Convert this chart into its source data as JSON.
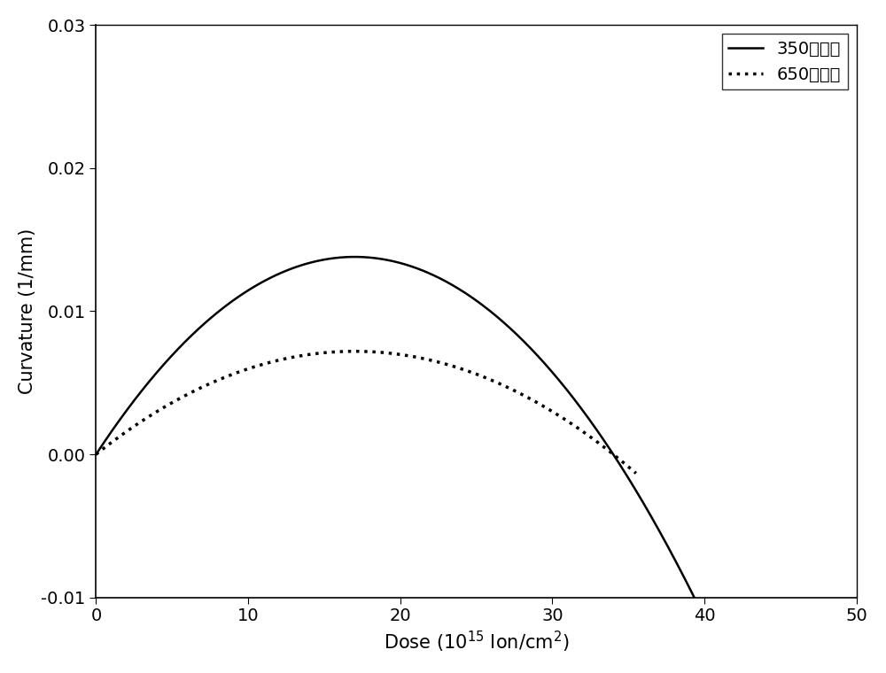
{
  "title": "",
  "xlim": [
    0,
    50
  ],
  "ylim": [
    -0.01,
    0.03
  ],
  "xticks": [
    0,
    10,
    20,
    30,
    40,
    50
  ],
  "yticks": [
    -0.01,
    0.0,
    0.01,
    0.02,
    0.03
  ],
  "curve1": {
    "label": "350摄氏度",
    "linestyle": "solid",
    "color": "#000000",
    "peak_x": 17.0,
    "peak_y": 0.0138,
    "x_end": 43.5
  },
  "curve2": {
    "label": "650摄氏度",
    "linestyle": "dotted",
    "color": "#000000",
    "peak_x": 17.0,
    "peak_y": 0.0072,
    "x_end": 35.5
  },
  "background_color": "#ffffff",
  "linewidth": 1.8,
  "fontsize_axis": 15,
  "fontsize_tick": 14,
  "fontsize_legend": 14
}
